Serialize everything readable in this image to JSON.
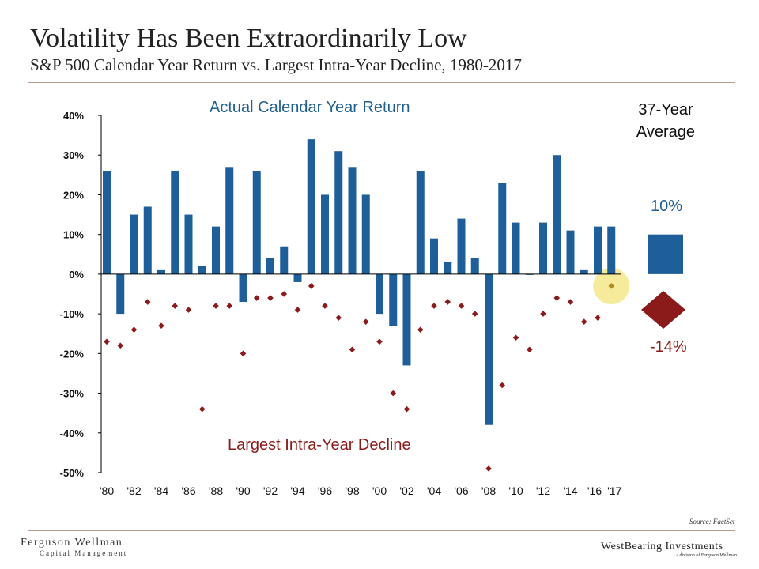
{
  "header": {
    "title": "Volatility Has Been Extraordinarily Low",
    "subtitle": "S&P 500 Calendar Year Return vs. Largest Intra-Year Decline, 1980-2017"
  },
  "chart_data": {
    "type": "bar",
    "title": "Volatility Has Been Extraordinarily Low",
    "xlabel": "",
    "ylabel": "",
    "ylim": [
      -50,
      40
    ],
    "yticks": [
      40,
      30,
      20,
      10,
      0,
      -10,
      -20,
      -30,
      -40,
      -50
    ],
    "ytick_labels": [
      "40%",
      "30%",
      "20%",
      "10%",
      "0%",
      "-10%",
      "-20%",
      "-30%",
      "-40%",
      "-50%"
    ],
    "years": [
      1980,
      1981,
      1982,
      1983,
      1984,
      1985,
      1986,
      1987,
      1988,
      1989,
      1990,
      1991,
      1992,
      1993,
      1994,
      1995,
      1996,
      1997,
      1998,
      1999,
      2000,
      2001,
      2002,
      2003,
      2004,
      2005,
      2006,
      2007,
      2008,
      2009,
      2010,
      2011,
      2012,
      2013,
      2014,
      2015,
      2016,
      2017
    ],
    "xtick_labels": [
      "'80",
      "'82",
      "'84",
      "'86",
      "'88",
      "'90",
      "'92",
      "'94",
      "'96",
      "'98",
      "'00",
      "'02",
      "'04",
      "'06",
      "'08",
      "'10",
      "'12",
      "'14",
      "'16",
      "'17"
    ],
    "xtick_years": [
      1980,
      1982,
      1984,
      1986,
      1988,
      1990,
      1992,
      1994,
      1996,
      1998,
      2000,
      2002,
      2004,
      2006,
      2008,
      2010,
      2012,
      2014,
      2016,
      2017
    ],
    "series": [
      {
        "name": "Actual Calendar Year Return",
        "color": "#1f5f99",
        "kind": "bar",
        "values": [
          26,
          -10,
          15,
          17,
          1,
          26,
          15,
          2,
          12,
          27,
          -7,
          26,
          4,
          7,
          -2,
          34,
          20,
          31,
          27,
          20,
          -10,
          -13,
          -23,
          26,
          9,
          3,
          14,
          4,
          -38,
          23,
          13,
          0,
          13,
          30,
          11,
          1,
          12,
          12
        ]
      },
      {
        "name": "Largest Intra-Year Decline",
        "color": "#8b1a1a",
        "kind": "point",
        "values": [
          -17,
          -18,
          -14,
          -7,
          -13,
          -8,
          -9,
          -34,
          -8,
          -8,
          -20,
          -6,
          -6,
          -5,
          -9,
          -3,
          -8,
          -11,
          -19,
          -12,
          -17,
          -30,
          -34,
          -14,
          -8,
          -7,
          -8,
          -10,
          -49,
          -28,
          -16,
          -19,
          -10,
          -6,
          -7,
          -12,
          -11,
          -3
        ]
      }
    ],
    "highlight": {
      "year": 2017,
      "color": "#f3e88a"
    },
    "average": {
      "heading": "37-Year Average",
      "return_value": 10,
      "return_label": "10%",
      "decline_value": -14,
      "decline_label": "-14%"
    },
    "annotations": {
      "returns_label": "Actual Calendar Year Return",
      "decline_label": "Largest Intra-Year Decline"
    }
  },
  "footer": {
    "source": "Source: FactSet",
    "left_logo_line1": "Ferguson Wellman",
    "left_logo_line2": "Capital Management",
    "right_logo_line1": "WestBearing Investments",
    "right_logo_line2": "a division of Ferguson Wellman"
  }
}
